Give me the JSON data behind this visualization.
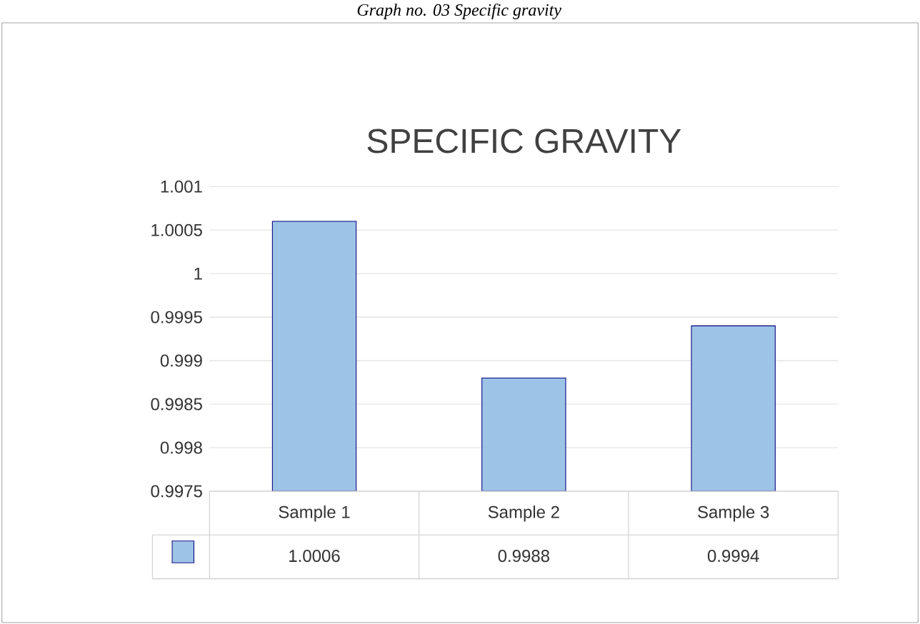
{
  "chart_data": {
    "type": "bar",
    "title": "SPECIFIC GRAVITY",
    "annotations": [
      "Graph no. 03 Specific gravity"
    ],
    "categories": [
      "Sample 1",
      "Sample 2",
      "Sample 3"
    ],
    "values": [
      1.0006,
      0.9988,
      0.9994
    ],
    "color": "#9dc3e6",
    "ylim": [
      0.9975,
      1.001
    ],
    "yticks": [
      0.9975,
      0.998,
      0.9985,
      0.999,
      0.9995,
      1,
      1.0005,
      1.001
    ],
    "grid": "y",
    "data_labels": true
  }
}
